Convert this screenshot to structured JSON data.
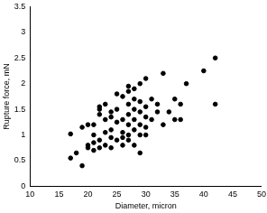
{
  "chart_data": {
    "type": "scatter",
    "x_label": "Diameter, micron",
    "y_label": "Rupture force, mN",
    "x": [
      17,
      17,
      18,
      19,
      19,
      20,
      20,
      20,
      21,
      21,
      21,
      21,
      22,
      22,
      22,
      22,
      22,
      23,
      23,
      23,
      23,
      24,
      24,
      24,
      24,
      24,
      25,
      25,
      25,
      25,
      26,
      26,
      26,
      26,
      26,
      27,
      27,
      27,
      27,
      27,
      27,
      27,
      28,
      28,
      28,
      28,
      28,
      28,
      29,
      29,
      29,
      29,
      29,
      29,
      30,
      30,
      30,
      30,
      30,
      31,
      31,
      32,
      32,
      33,
      33,
      34,
      35,
      35,
      36,
      36,
      37,
      40,
      42,
      42
    ],
    "values": [
      0.55,
      1.02,
      0.65,
      0.4,
      1.15,
      0.75,
      0.8,
      1.2,
      0.7,
      0.85,
      1.0,
      1.2,
      0.75,
      0.9,
      1.4,
      1.5,
      1.55,
      0.8,
      1.05,
      1.3,
      1.6,
      0.75,
      0.95,
      1.1,
      1.35,
      1.45,
      0.9,
      1.25,
      1.5,
      1.8,
      0.8,
      0.95,
      1.05,
      1.3,
      1.75,
      0.9,
      1.0,
      1.2,
      1.4,
      1.6,
      1.85,
      1.95,
      0.8,
      1.1,
      1.3,
      1.5,
      1.7,
      1.9,
      0.65,
      1.0,
      1.2,
      1.45,
      1.65,
      2.0,
      1.0,
      1.15,
      1.35,
      1.55,
      2.1,
      1.3,
      1.7,
      1.45,
      1.6,
      1.2,
      2.2,
      1.45,
      1.3,
      1.7,
      1.6,
      1.3,
      2.0,
      2.25,
      2.5,
      1.6
    ],
    "color": "#000000",
    "marker": "circle",
    "xlim": [
      10,
      50
    ],
    "xticks": [
      10,
      15,
      20,
      25,
      30,
      35,
      40,
      45,
      50
    ],
    "ylim": [
      0,
      3.5
    ],
    "yticks": [
      0,
      0.5,
      1,
      1.5,
      2,
      2.5,
      3,
      3.5
    ],
    "grid": false
  }
}
